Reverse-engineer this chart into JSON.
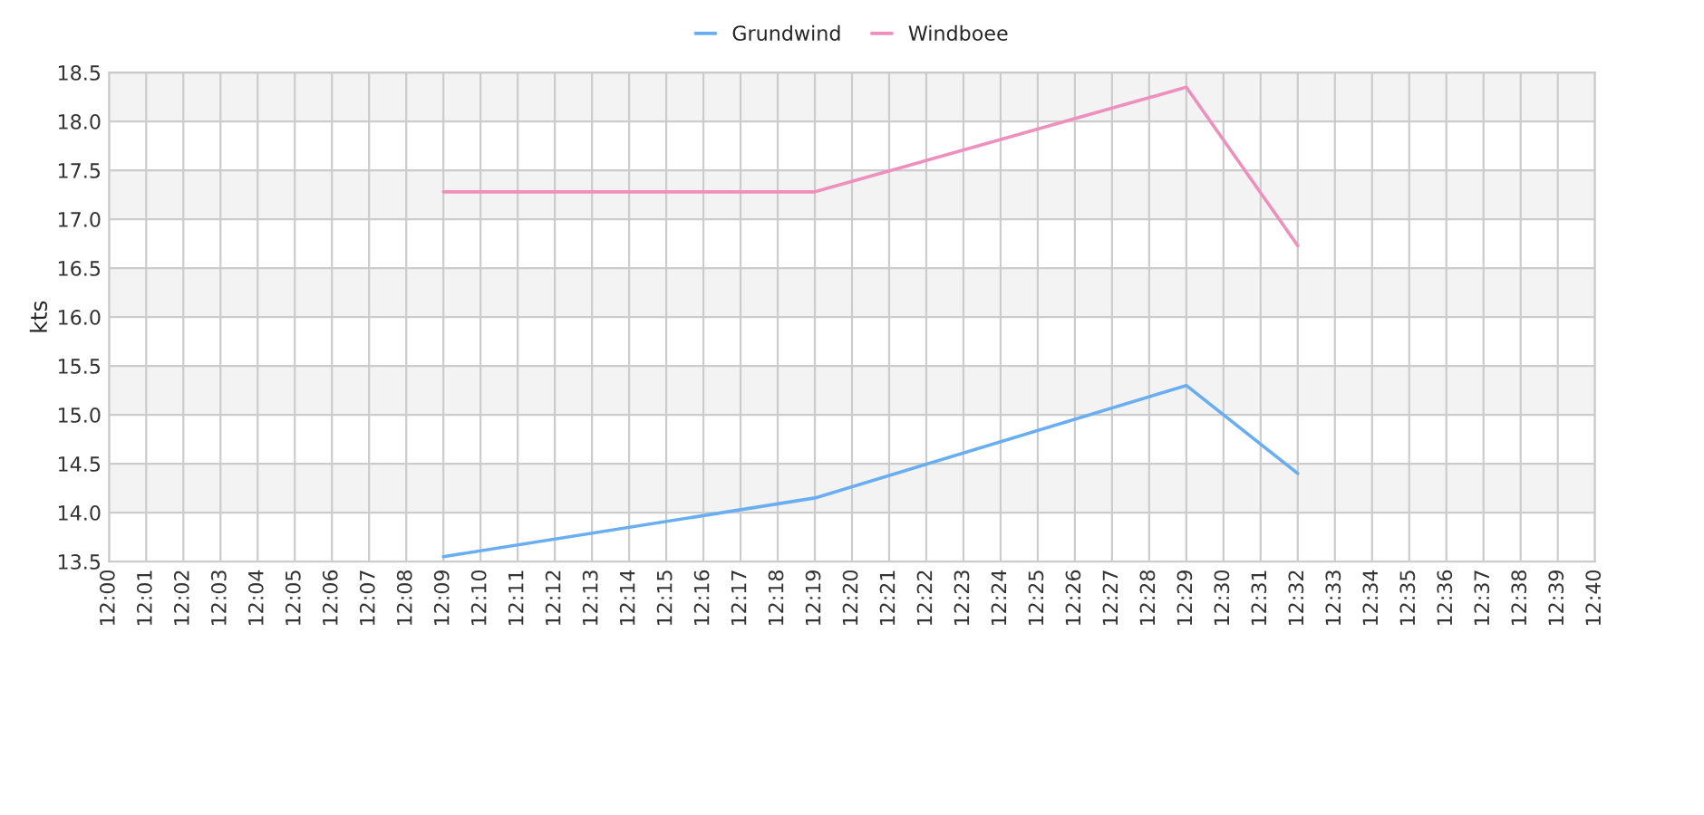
{
  "chart_data": {
    "type": "line",
    "ylabel": "kts",
    "legend": "top",
    "series": [
      {
        "name": "Grundwind",
        "color": "#6aaef2",
        "x": [
          12.15,
          12.316667,
          12.483333,
          12.533333
        ],
        "values": [
          13.55,
          14.15,
          15.3,
          14.4
        ]
      },
      {
        "name": "Windboee",
        "color": "#ee8fbd",
        "x": [
          12.15,
          12.316667,
          12.483333,
          12.533333
        ],
        "values": [
          17.28,
          17.28,
          18.35,
          16.73
        ]
      }
    ],
    "xlim": [
      12.0,
      12.666667
    ],
    "xticks": [
      {
        "value": 12.0,
        "label": "12:00"
      },
      {
        "value": 12.016667,
        "label": "12:01"
      },
      {
        "value": 12.033333,
        "label": "12:02"
      },
      {
        "value": 12.05,
        "label": "12:03"
      },
      {
        "value": 12.066667,
        "label": "12:04"
      },
      {
        "value": 12.083333,
        "label": "12:05"
      },
      {
        "value": 12.1,
        "label": "12:06"
      },
      {
        "value": 12.116667,
        "label": "12:07"
      },
      {
        "value": 12.133333,
        "label": "12:08"
      },
      {
        "value": 12.15,
        "label": "12:09"
      },
      {
        "value": 12.166667,
        "label": "12:10"
      },
      {
        "value": 12.183333,
        "label": "12:11"
      },
      {
        "value": 12.2,
        "label": "12:12"
      },
      {
        "value": 12.216667,
        "label": "12:13"
      },
      {
        "value": 12.233333,
        "label": "12:14"
      },
      {
        "value": 12.25,
        "label": "12:15"
      },
      {
        "value": 12.266667,
        "label": "12:16"
      },
      {
        "value": 12.283333,
        "label": "12:17"
      },
      {
        "value": 12.3,
        "label": "12:18"
      },
      {
        "value": 12.316667,
        "label": "12:19"
      },
      {
        "value": 12.333333,
        "label": "12:20"
      },
      {
        "value": 12.35,
        "label": "12:21"
      },
      {
        "value": 12.366667,
        "label": "12:22"
      },
      {
        "value": 12.383333,
        "label": "12:23"
      },
      {
        "value": 12.4,
        "label": "12:24"
      },
      {
        "value": 12.416667,
        "label": "12:25"
      },
      {
        "value": 12.433333,
        "label": "12:26"
      },
      {
        "value": 12.45,
        "label": "12:27"
      },
      {
        "value": 12.466667,
        "label": "12:28"
      },
      {
        "value": 12.483333,
        "label": "12:29"
      },
      {
        "value": 12.5,
        "label": "12:30"
      },
      {
        "value": 12.516667,
        "label": "12:31"
      },
      {
        "value": 12.533333,
        "label": "12:32"
      },
      {
        "value": 12.55,
        "label": "12:33"
      },
      {
        "value": 12.566667,
        "label": "12:34"
      },
      {
        "value": 12.583333,
        "label": "12:35"
      },
      {
        "value": 12.6,
        "label": "12:36"
      },
      {
        "value": 12.616667,
        "label": "12:37"
      },
      {
        "value": 12.633333,
        "label": "12:38"
      },
      {
        "value": 12.65,
        "label": "12:39"
      },
      {
        "value": 12.666667,
        "label": "12:40"
      }
    ],
    "ylim": [
      13.5,
      18.5
    ],
    "yticks": [
      {
        "value": 13.5,
        "label": "13.5"
      },
      {
        "value": 14.0,
        "label": "14.0"
      },
      {
        "value": 14.5,
        "label": "14.5"
      },
      {
        "value": 15.0,
        "label": "15.0"
      },
      {
        "value": 15.5,
        "label": "15.5"
      },
      {
        "value": 16.0,
        "label": "16.0"
      },
      {
        "value": 16.5,
        "label": "16.5"
      },
      {
        "value": 17.0,
        "label": "17.0"
      },
      {
        "value": 17.5,
        "label": "17.5"
      },
      {
        "value": 18.0,
        "label": "18.0"
      },
      {
        "value": 18.5,
        "label": "18.5"
      }
    ],
    "grid": true,
    "marker": "none",
    "line_style": "solid",
    "bands": [
      {
        "axis": "y",
        "from": 14.0,
        "to": 14.5,
        "color": "#f3f3f3"
      },
      {
        "axis": "y",
        "from": 15.0,
        "to": 15.5,
        "color": "#f3f3f3"
      },
      {
        "axis": "y",
        "from": 16.0,
        "to": 16.5,
        "color": "#f3f3f3"
      },
      {
        "axis": "y",
        "from": 17.0,
        "to": 17.5,
        "color": "#f3f3f3"
      },
      {
        "axis": "y",
        "from": 18.0,
        "to": 18.5,
        "color": "#f3f3f3"
      }
    ]
  }
}
